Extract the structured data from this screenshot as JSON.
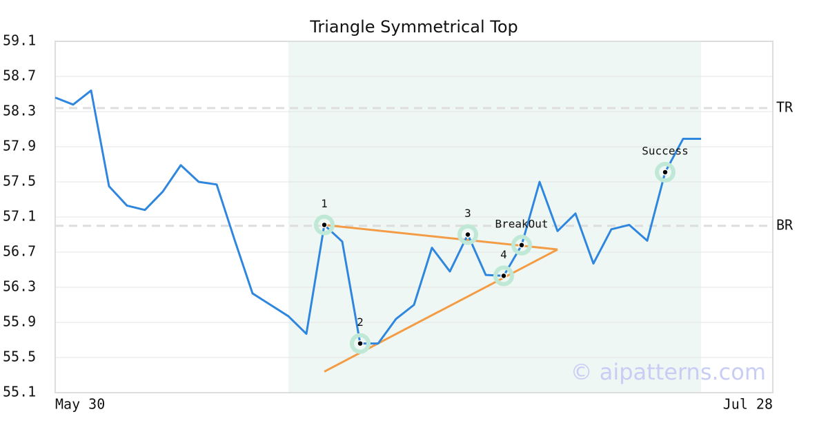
{
  "chart_data": {
    "type": "line",
    "title": "Triangle Symmetrical Top",
    "watermark": "© aipatterns.com",
    "categories": [
      "May 30",
      null,
      null,
      null,
      null,
      null,
      null,
      null,
      null,
      null,
      null,
      null,
      null,
      null,
      null,
      null,
      null,
      null,
      null,
      null,
      null,
      null,
      null,
      null,
      null,
      null,
      null,
      null,
      null,
      null,
      null,
      null,
      null,
      null,
      null,
      null,
      null,
      null,
      null,
      null,
      "Jul 28"
    ],
    "values": [
      58.46,
      58.38,
      58.54,
      57.45,
      57.23,
      57.18,
      57.39,
      57.69,
      57.5,
      57.47,
      56.84,
      56.23,
      56.1,
      55.97,
      55.77,
      57.01,
      56.82,
      55.66,
      55.66,
      55.94,
      56.1,
      56.75,
      56.48,
      56.9,
      56.44,
      56.43,
      56.78,
      57.5,
      56.94,
      57.14,
      56.57,
      56.96,
      57.01,
      56.83,
      57.61,
      57.99,
      57.99,
      null,
      null,
      null,
      null
    ],
    "color": "#2e86de",
    "ylim": [
      55.1,
      59.1
    ],
    "yticks": [
      55.1,
      55.5,
      55.9,
      56.3,
      56.7,
      57.1,
      57.5,
      57.9,
      58.3,
      58.7,
      59.1
    ],
    "grid": true,
    "highlight_range": [
      13,
      36
    ],
    "highlight_color": "#eef7f3",
    "reference_lines": [
      {
        "label": "TR",
        "value": 58.34
      },
      {
        "label": "BR",
        "value": 57.0
      }
    ],
    "trendlines": [
      {
        "color": "#f39c45",
        "x": [
          15,
          28
        ],
        "values": [
          57.01,
          56.73
        ]
      },
      {
        "color": "#f39c45",
        "x": [
          15,
          28
        ],
        "values": [
          55.34,
          56.73
        ]
      }
    ],
    "annotations": [
      {
        "label": "1",
        "index": 15,
        "value": 57.01
      },
      {
        "label": "2",
        "index": 17,
        "value": 55.66
      },
      {
        "label": "3",
        "index": 23,
        "value": 56.9
      },
      {
        "label": "4",
        "index": 25,
        "value": 56.43
      },
      {
        "label": "BreakOut",
        "index": 26,
        "value": 56.78
      },
      {
        "label": "Success",
        "index": 34,
        "value": 57.61
      }
    ]
  }
}
